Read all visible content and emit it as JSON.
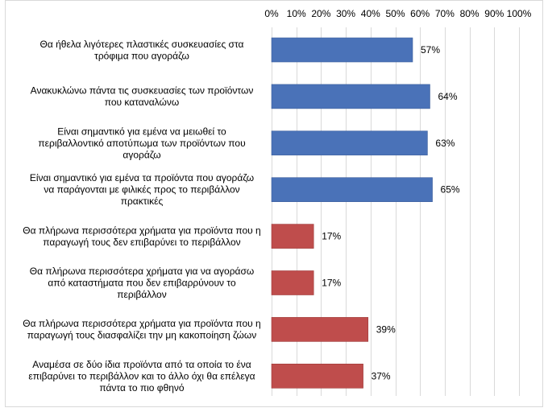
{
  "chart_data": {
    "type": "bar",
    "orientation": "horizontal",
    "title": "",
    "xlabel": "",
    "ylabel": "",
    "xlim": [
      0,
      100
    ],
    "x_ticks": [
      "0%",
      "10%",
      "20%",
      "30%",
      "40%",
      "50%",
      "60%",
      "70%",
      "80%",
      "90%",
      "100%"
    ],
    "x_axis_position": "top",
    "grid": true,
    "legend": "none",
    "value_format": "percent",
    "categories": [
      [
        "Θα ήθελα λιγότερες πλαστικές συσκευασίες στα",
        "τρόφιμα που αγοράζω"
      ],
      [
        "Ανακυκλώνω πάντα τις συσκευασίες των προϊόντων",
        "που καταναλώνω"
      ],
      [
        "Είναι σημαντικό για εμένα να μειωθεί το",
        "περιβαλλοντικό αποτύπωμα των προϊόντων που",
        "αγοράζω"
      ],
      [
        "Είναι σημαντικό για εμένα τα προϊόντα που αγοράζω",
        "να παράγονται με φιλικές προς το περιβάλλον",
        "πρακτικές"
      ],
      [
        "Θα πλήρωνα περισσότερα χρήματα για προϊόντα που η",
        "παραγωγή τους δεν επιβαρύνει το περιβάλλον"
      ],
      [
        "Θα πλήρωνα περισσότερα χρήματα για να αγοράσω",
        "από καταστήματα που δεν επιβαρρύνουν το",
        "περιβάλλον"
      ],
      [
        "Θα πλήρωνα περισσότερα χρήματα για προϊόντα που η",
        "παραγωγή τους διασφαλίζει την μη κακοποίηση ζώων"
      ],
      [
        "Αναμέσα σε δύο ίδια προϊόντα από τα οποία το ένα",
        "επιβαρύνει το περιβάλλον και το άλλο όχι θα επέλεγα",
        "πάντα το πιο φθηνό"
      ]
    ],
    "values": [
      57,
      64,
      63,
      65,
      17,
      17,
      39,
      37
    ],
    "data_labels": [
      "57%",
      "64%",
      "63%",
      "65%",
      "17%",
      "17%",
      "39%",
      "37%"
    ],
    "colors": [
      "#4a72b8",
      "#4a72b8",
      "#4a72b8",
      "#4a72b8",
      "#bf4d4c",
      "#bf4d4c",
      "#bf4d4c",
      "#bf4d4c"
    ]
  },
  "style": {
    "grid_color": "#d9d9d9",
    "border_color": "#d9d9d9",
    "bar_stroke_blue": "#3c5f9c",
    "bar_stroke_red": "#9e3b3a"
  }
}
